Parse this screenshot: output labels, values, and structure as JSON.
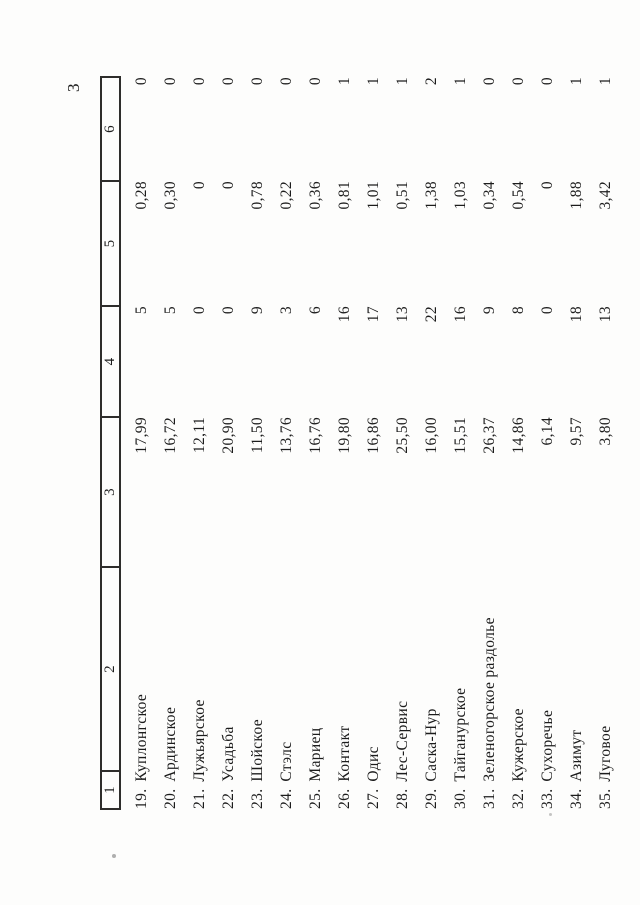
{
  "page_number": "3",
  "table": {
    "headers": [
      "1",
      "2",
      "3",
      "4",
      "5",
      "6"
    ],
    "rows": [
      {
        "num": "19.",
        "name": "Куплонгское",
        "col3": "17,99",
        "col4": "5",
        "col5": "0,28",
        "col6": "0"
      },
      {
        "num": "20.",
        "name": "Ардинское",
        "col3": "16,72",
        "col4": "5",
        "col5": "0,30",
        "col6": "0"
      },
      {
        "num": "21.",
        "name": "Лужьярское",
        "col3": "12,11",
        "col4": "0",
        "col5": "0",
        "col6": "0"
      },
      {
        "num": "22.",
        "name": "Усадьба",
        "col3": "20,90",
        "col4": "0",
        "col5": "0",
        "col6": "0"
      },
      {
        "num": "23.",
        "name": "Шойское",
        "col3": "11,50",
        "col4": "9",
        "col5": "0,78",
        "col6": "0"
      },
      {
        "num": "24.",
        "name": "Стэлс",
        "col3": "13,76",
        "col4": "3",
        "col5": "0,22",
        "col6": "0"
      },
      {
        "num": "25.",
        "name": "Мариец",
        "col3": "16,76",
        "col4": "6",
        "col5": "0,36",
        "col6": "0"
      },
      {
        "num": "26.",
        "name": "Контакт",
        "col3": "19,80",
        "col4": "16",
        "col5": "0,81",
        "col6": "1"
      },
      {
        "num": "27.",
        "name": "Одис",
        "col3": "16,86",
        "col4": "17",
        "col5": "1,01",
        "col6": "1"
      },
      {
        "num": "28.",
        "name": "Лес-Сервис",
        "col3": "25,50",
        "col4": "13",
        "col5": "0,51",
        "col6": "1"
      },
      {
        "num": "29.",
        "name": "Саска-Нур",
        "col3": "16,00",
        "col4": "22",
        "col5": "1,38",
        "col6": "2"
      },
      {
        "num": "30.",
        "name": "Тайганурское",
        "col3": "15,51",
        "col4": "16",
        "col5": "1,03",
        "col6": "1"
      },
      {
        "num": "31.",
        "name": "Зеленогорское раздолье",
        "col3": "26,37",
        "col4": "9",
        "col5": "0,34",
        "col6": "0"
      },
      {
        "num": "32.",
        "name": "Кужерское",
        "col3": "14,86",
        "col4": "8",
        "col5": "0,54",
        "col6": "0"
      },
      {
        "num": "33.",
        "name": "Сухоречье",
        "col3": "6,14",
        "col4": "0",
        "col5": "0",
        "col6": "0"
      },
      {
        "num": "34.",
        "name": "Азимут",
        "col3": "9,57",
        "col4": "18",
        "col5": "1,88",
        "col6": "1"
      },
      {
        "num": "35.",
        "name": "Луговое",
        "col3": "3,80",
        "col4": "13",
        "col5": "3,42",
        "col6": "1"
      }
    ]
  }
}
